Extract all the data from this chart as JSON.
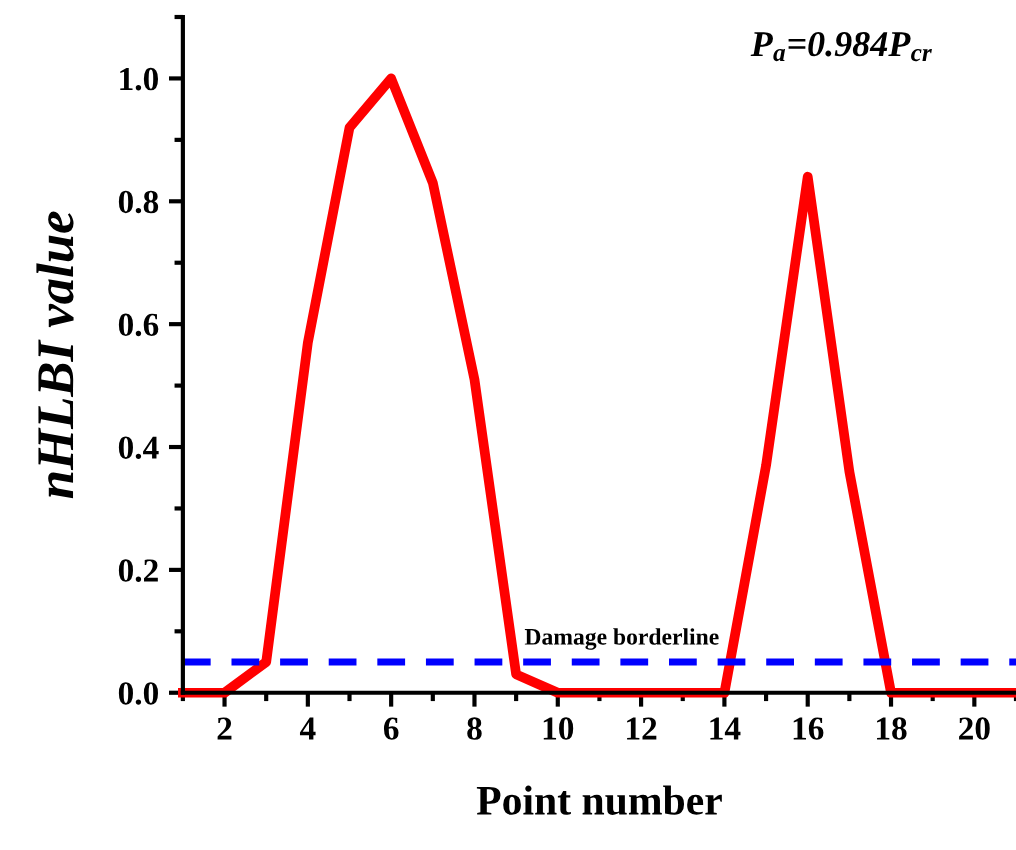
{
  "chart_data": {
    "type": "line",
    "xlabel": "Point number",
    "ylabel": "nHLBI value",
    "annotations": [
      "P$_{a}$=0.984P$_{cr}$"
    ],
    "x": [
      1,
      2,
      3,
      4,
      5,
      6,
      7,
      8,
      9,
      10,
      11,
      12,
      13,
      14,
      15,
      16,
      17,
      18,
      19,
      20,
      21
    ],
    "series": [
      {
        "color": "#ff0000",
        "values": [
          0,
          0,
          0.05,
          0.57,
          0.92,
          1.0,
          0.83,
          0.51,
          0.03,
          0,
          0,
          0,
          0,
          0,
          0.37,
          0.84,
          0.36,
          0,
          0,
          0,
          0
        ]
      }
    ],
    "xlim": [
      1,
      21
    ],
    "ylim": [
      0,
      1.1
    ],
    "xticks": [
      2,
      4,
      6,
      8,
      10,
      12,
      14,
      16,
      18,
      20
    ],
    "yticks": [
      {
        "value": 0,
        "label": "0.0"
      },
      0.2,
      0.4,
      0.6,
      0.8,
      {
        "value": 1,
        "label": "1.0"
      }
    ],
    "ref_lines": [
      {
        "axis": "y",
        "value": 0.05,
        "label": "Damage borderline",
        "color": "#0000ff",
        "line_style": "dashed"
      }
    ],
    "grid": false,
    "legend": false,
    "marker": "none",
    "line_style": "solid"
  }
}
